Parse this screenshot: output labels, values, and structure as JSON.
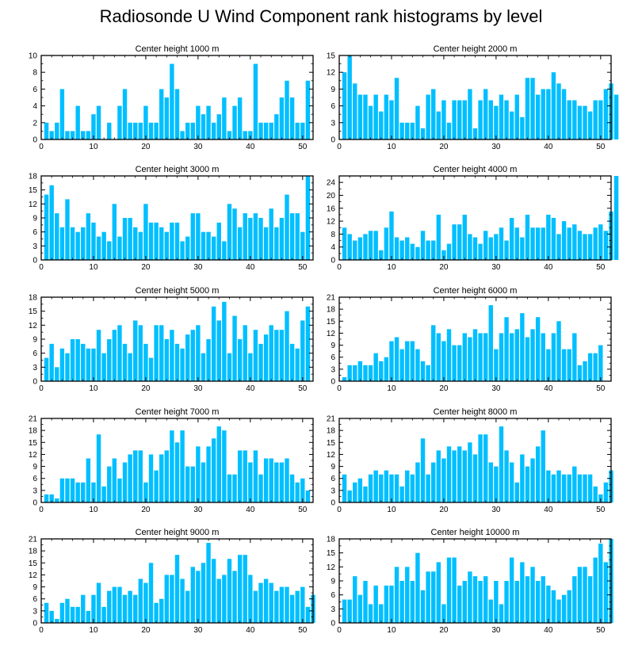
{
  "title": "Radiosonde U Wind Component rank histograms by level",
  "colors": {
    "bar": "#00BFFF",
    "axis": "#000000",
    "background": "#ffffff"
  },
  "chart_data": [
    {
      "type": "bar",
      "title": "Center height 1000 m",
      "xlim": [
        0,
        52
      ],
      "ylim": [
        0,
        10
      ],
      "xticks": [
        0,
        10,
        20,
        30,
        40,
        50
      ],
      "yticks": [
        0,
        2,
        4,
        6,
        8,
        10
      ],
      "values": [
        2,
        1,
        2,
        6,
        1,
        1,
        4,
        1,
        1,
        3,
        4,
        0,
        2,
        0,
        4,
        6,
        2,
        2,
        2,
        4,
        2,
        2,
        6,
        5,
        9,
        6,
        1,
        2,
        2,
        4,
        3,
        4,
        2,
        3,
        5,
        1,
        4,
        5,
        1,
        1,
        9,
        2,
        2,
        2,
        3,
        5,
        7,
        5,
        2,
        2,
        7
      ]
    },
    {
      "type": "bar",
      "title": "Center height 2000 m",
      "xlim": [
        0,
        52
      ],
      "ylim": [
        0,
        15
      ],
      "xticks": [
        0,
        10,
        20,
        30,
        40,
        50
      ],
      "yticks": [
        0,
        3,
        6,
        9,
        12,
        15
      ],
      "values": [
        12,
        15,
        10,
        8,
        8,
        6,
        8,
        5,
        8,
        7,
        11,
        3,
        3,
        3,
        6,
        2,
        8,
        9,
        5,
        7,
        3,
        7,
        7,
        7,
        9,
        2,
        7,
        9,
        7,
        6,
        8,
        7,
        5,
        8,
        4,
        11,
        11,
        8,
        9,
        9,
        12,
        10,
        9,
        7,
        7,
        6,
        6,
        5,
        7,
        7,
        9,
        10,
        8
      ]
    },
    {
      "type": "bar",
      "title": "Center height 3000 m",
      "xlim": [
        0,
        52
      ],
      "ylim": [
        0,
        18
      ],
      "xticks": [
        0,
        10,
        20,
        30,
        40,
        50
      ],
      "yticks": [
        0,
        3,
        6,
        9,
        12,
        15,
        18
      ],
      "values": [
        14,
        16,
        10,
        7,
        13,
        7,
        6,
        7,
        10,
        8,
        5,
        6,
        4,
        12,
        5,
        9,
        9,
        7,
        6,
        12,
        8,
        8,
        7,
        6,
        8,
        8,
        4,
        5,
        10,
        10,
        6,
        6,
        5,
        8,
        4,
        12,
        11,
        7,
        10,
        9,
        10,
        9,
        7,
        11,
        7,
        9,
        14,
        10,
        10,
        6,
        18
      ]
    },
    {
      "type": "bar",
      "title": "Center height 4000 m",
      "xlim": [
        0,
        52
      ],
      "ylim": [
        0,
        26
      ],
      "xticks": [
        0,
        10,
        20,
        30,
        40,
        50
      ],
      "yticks": [
        0,
        4,
        8,
        12,
        16,
        20,
        24
      ],
      "values": [
        10,
        8,
        6,
        7,
        8,
        9,
        9,
        3,
        10,
        15,
        7,
        6,
        7,
        5,
        4,
        9,
        6,
        6,
        14,
        3,
        5,
        11,
        11,
        14,
        8,
        7,
        5,
        9,
        7,
        8,
        10,
        6,
        13,
        10,
        7,
        14,
        10,
        10,
        10,
        14,
        13,
        8,
        12,
        10,
        11,
        9,
        8,
        8,
        10,
        11,
        9,
        15,
        26
      ]
    },
    {
      "type": "bar",
      "title": "Center height 5000 m",
      "xlim": [
        0,
        52
      ],
      "ylim": [
        0,
        18
      ],
      "xticks": [
        0,
        10,
        20,
        30,
        40,
        50
      ],
      "yticks": [
        0,
        3,
        6,
        9,
        12,
        15,
        18
      ],
      "values": [
        5,
        8,
        3,
        7,
        6,
        9,
        9,
        8,
        7,
        7,
        11,
        6,
        9,
        11,
        12,
        8,
        6,
        13,
        12,
        8,
        5,
        12,
        12,
        9,
        11,
        8,
        7,
        10,
        11,
        12,
        6,
        9,
        16,
        13,
        17,
        6,
        14,
        9,
        12,
        6,
        11,
        8,
        10,
        12,
        11,
        11,
        15,
        8,
        7,
        13,
        16
      ]
    },
    {
      "type": "bar",
      "title": "Center height 6000 m",
      "xlim": [
        0,
        52
      ],
      "ylim": [
        0,
        21
      ],
      "xticks": [
        0,
        10,
        20,
        30,
        40,
        50
      ],
      "yticks": [
        0,
        3,
        6,
        9,
        12,
        15,
        18,
        21
      ],
      "values": [
        1,
        4,
        4,
        5,
        4,
        4,
        7,
        5,
        6,
        10,
        11,
        8,
        10,
        10,
        8,
        5,
        4,
        14,
        12,
        10,
        13,
        9,
        9,
        12,
        11,
        13,
        12,
        12,
        19,
        8,
        12,
        16,
        12,
        13,
        17,
        11,
        13,
        16,
        12,
        8,
        12,
        15,
        8,
        8,
        12,
        4,
        5,
        7,
        7,
        9
      ]
    },
    {
      "type": "bar",
      "title": "Center height 7000 m",
      "xlim": [
        0,
        52
      ],
      "ylim": [
        0,
        21
      ],
      "xticks": [
        0,
        10,
        20,
        30,
        40,
        50
      ],
      "yticks": [
        0,
        3,
        6,
        9,
        12,
        15,
        18,
        21
      ],
      "values": [
        2,
        2,
        1,
        6,
        6,
        6,
        5,
        5,
        11,
        5,
        17,
        4,
        9,
        11,
        6,
        10,
        12,
        13,
        13,
        5,
        12,
        8,
        12,
        13,
        18,
        15,
        18,
        9,
        9,
        14,
        10,
        14,
        16,
        19,
        18,
        7,
        7,
        13,
        13,
        10,
        13,
        7,
        11,
        11,
        10,
        10,
        11,
        7,
        5,
        6,
        3
      ]
    },
    {
      "type": "bar",
      "title": "Center height 8000 m",
      "xlim": [
        0,
        52
      ],
      "ylim": [
        0,
        21
      ],
      "xticks": [
        0,
        10,
        20,
        30,
        40,
        50
      ],
      "yticks": [
        0,
        3,
        6,
        9,
        12,
        15,
        18,
        21
      ],
      "values": [
        7,
        3,
        5,
        6,
        4,
        7,
        8,
        7,
        8,
        7,
        7,
        4,
        8,
        7,
        10,
        16,
        7,
        10,
        13,
        11,
        14,
        13,
        14,
        13,
        15,
        12,
        17,
        17,
        10,
        9,
        19,
        13,
        10,
        5,
        12,
        9,
        11,
        14,
        18,
        8,
        7,
        8,
        7,
        7,
        9,
        7,
        7,
        7,
        4,
        2,
        5,
        8
      ]
    },
    {
      "type": "bar",
      "title": "Center height 9000 m",
      "xlim": [
        0,
        52
      ],
      "ylim": [
        0,
        21
      ],
      "xticks": [
        0,
        10,
        20,
        30,
        40,
        50
      ],
      "yticks": [
        0,
        3,
        6,
        9,
        12,
        15,
        18,
        21
      ],
      "values": [
        5,
        3,
        1,
        5,
        6,
        4,
        4,
        7,
        3,
        7,
        10,
        4,
        8,
        9,
        9,
        7,
        8,
        7,
        11,
        10,
        15,
        5,
        6,
        12,
        12,
        17,
        11,
        8,
        14,
        13,
        15,
        20,
        16,
        11,
        12,
        16,
        13,
        17,
        17,
        12,
        8,
        10,
        11,
        10,
        8,
        9,
        9,
        7,
        8,
        9,
        4,
        7
      ]
    },
    {
      "type": "bar",
      "title": "Center height 10000 m",
      "xlim": [
        0,
        52
      ],
      "ylim": [
        0,
        18
      ],
      "xticks": [
        0,
        10,
        20,
        30,
        40,
        50
      ],
      "yticks": [
        0,
        3,
        6,
        9,
        12,
        15,
        18
      ],
      "values": [
        5,
        5,
        10,
        6,
        9,
        4,
        8,
        4,
        8,
        8,
        12,
        9,
        12,
        9,
        15,
        7,
        11,
        11,
        13,
        4,
        14,
        14,
        8,
        9,
        11,
        10,
        9,
        10,
        5,
        9,
        4,
        9,
        14,
        9,
        13,
        10,
        12,
        9,
        10,
        8,
        7,
        5,
        6,
        7,
        10,
        12,
        12,
        10,
        14,
        17,
        13,
        18
      ]
    }
  ]
}
